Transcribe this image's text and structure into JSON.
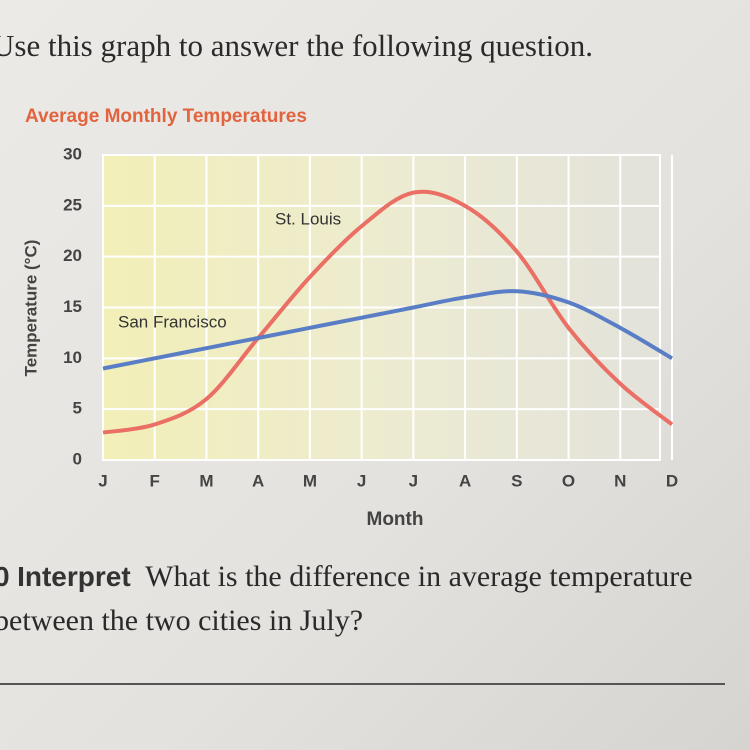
{
  "intro": "Use this graph to answer the following question.",
  "chart_data": {
    "type": "line",
    "title": "Average Monthly Temperatures",
    "categories": [
      "J",
      "F",
      "M",
      "A",
      "M",
      "J",
      "J",
      "A",
      "S",
      "O",
      "N",
      "D"
    ],
    "x_label": "Month",
    "y_label": "Temperature (°C)",
    "ylim": [
      0,
      30
    ],
    "yticks": [
      0,
      5,
      10,
      15,
      20,
      25,
      30
    ],
    "grid": true,
    "series": [
      {
        "name": "St. Louis",
        "color": "#ea6f64",
        "values": [
          2.7,
          3.5,
          6,
          12,
          18,
          23,
          26.3,
          25,
          20.5,
          13,
          7.5,
          3.5
        ]
      },
      {
        "name": "San Francisco",
        "color": "#5a7ec6",
        "values": [
          9,
          10,
          11,
          12,
          13,
          14,
          15,
          16,
          16.6,
          15.5,
          13,
          10
        ]
      }
    ]
  },
  "question": {
    "number": "0",
    "label": "Interpret",
    "text": "What is the difference in average temperature between the two cities in July?"
  }
}
